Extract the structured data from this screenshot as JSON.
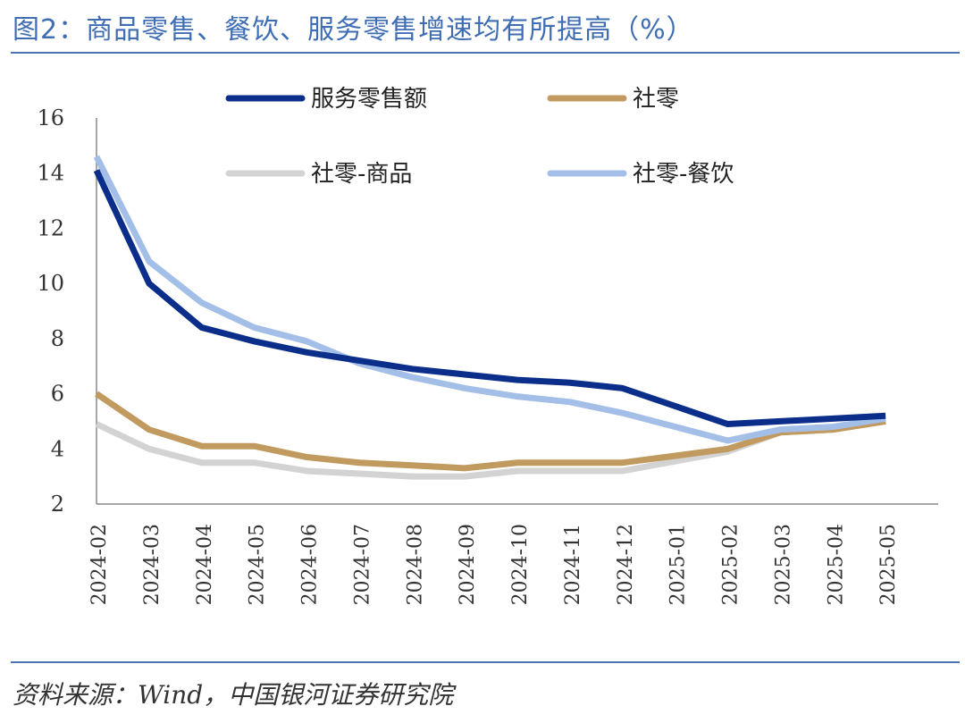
{
  "title": "图2：商品零售、餐饮、服务零售增速均有所提高（%）",
  "source": "资料来源：Wind，中国银河证券研究院",
  "chart_data": {
    "type": "line",
    "x": [
      "2024-02",
      "2024-03",
      "2024-04",
      "2024-05",
      "2024-06",
      "2024-07",
      "2024-08",
      "2024-09",
      "2024-10",
      "2024-11",
      "2024-12",
      "2025-01",
      "2025-02",
      "2025-03",
      "2025-04",
      "2025-05"
    ],
    "ylim": [
      2,
      16
    ],
    "yticks": [
      2,
      4,
      6,
      8,
      10,
      12,
      14,
      16
    ],
    "legend_placement": "top",
    "series": [
      {
        "name": "服务零售额",
        "color": "#0a2e8a",
        "values": [
          14.1,
          10.0,
          8.4,
          7.9,
          7.5,
          7.2,
          6.9,
          6.7,
          6.5,
          6.4,
          6.2,
          null,
          4.9,
          5.0,
          5.1,
          5.2
        ]
      },
      {
        "name": "社零",
        "color": "#c19a5f",
        "values": [
          6.0,
          4.7,
          4.1,
          4.1,
          3.7,
          3.5,
          3.4,
          3.3,
          3.5,
          3.5,
          3.5,
          null,
          4.0,
          4.6,
          4.7,
          5.0
        ]
      },
      {
        "name": "社零-商品",
        "color": "#d3d3d3",
        "values": [
          4.9,
          4.0,
          3.5,
          3.5,
          3.2,
          3.1,
          3.0,
          3.0,
          3.2,
          3.2,
          3.2,
          null,
          3.9,
          4.6,
          4.7,
          5.0
        ]
      },
      {
        "name": "社零-餐饮",
        "color": "#a3bfe8",
        "values": [
          14.6,
          10.8,
          9.3,
          8.4,
          7.9,
          7.1,
          6.6,
          6.2,
          5.9,
          5.7,
          5.3,
          null,
          4.3,
          4.7,
          4.8,
          5.1
        ]
      }
    ]
  }
}
